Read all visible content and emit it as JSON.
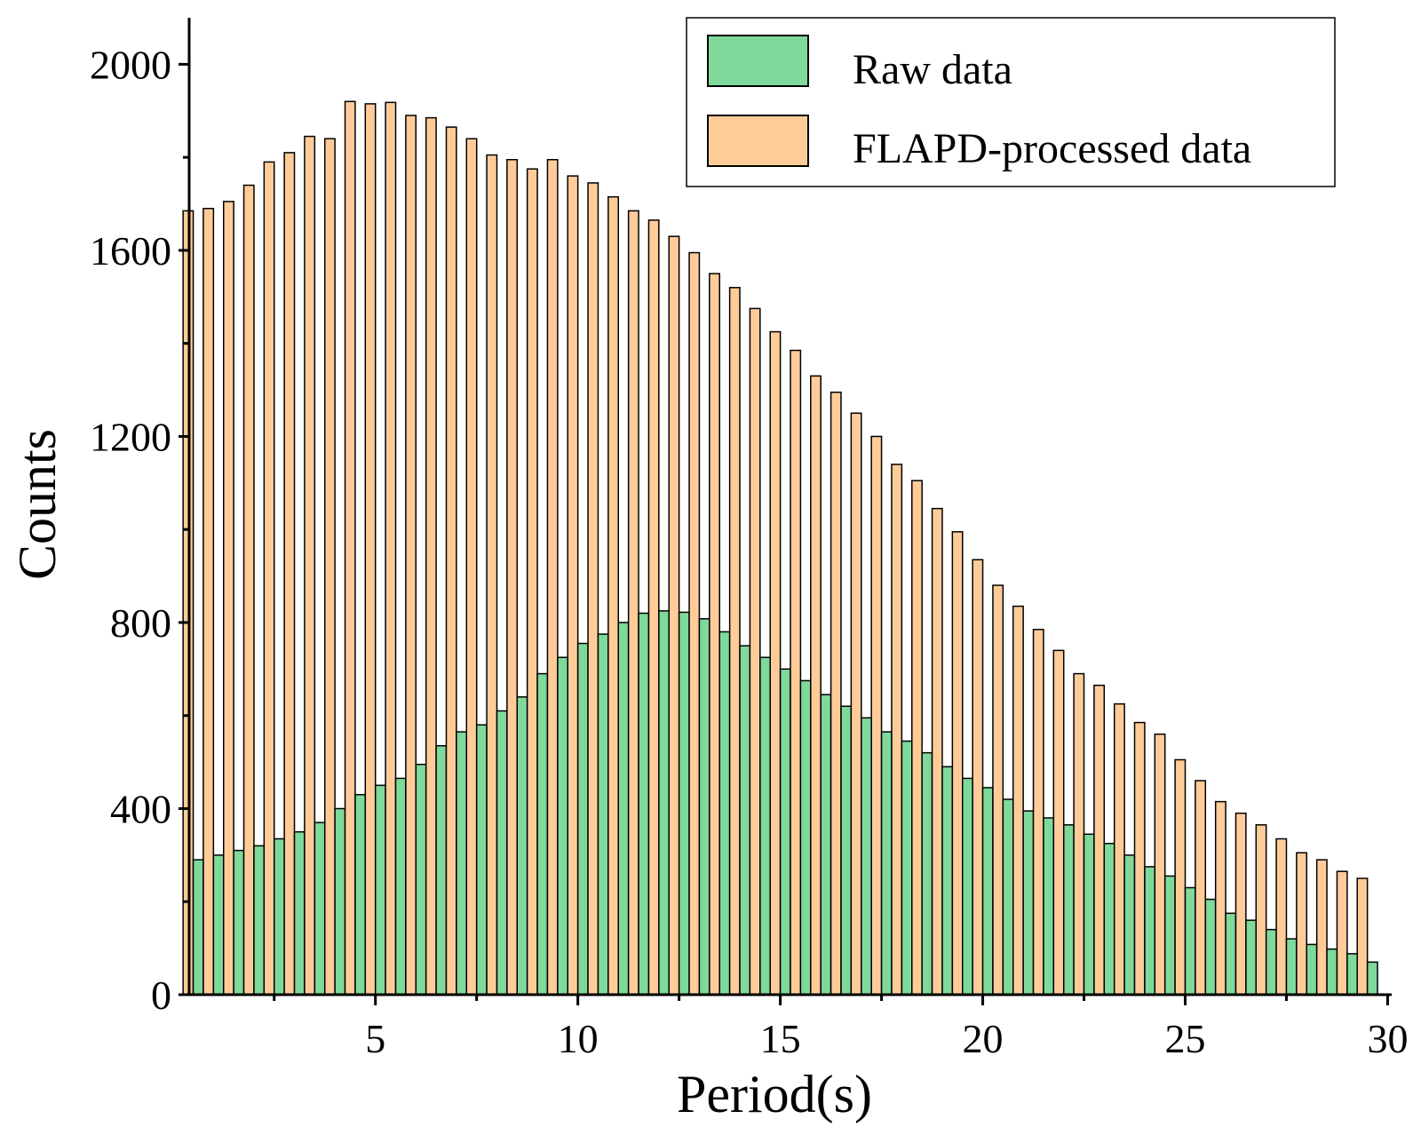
{
  "chart_data": {
    "type": "bar",
    "title": "",
    "xlabel": "Period(s)",
    "ylabel": "Counts",
    "xlim": [
      0.4,
      30.1
    ],
    "ylim": [
      0,
      2100
    ],
    "x_ticks": [
      5,
      10,
      15,
      20,
      25,
      30
    ],
    "y_ticks": [
      0,
      400,
      800,
      1200,
      1600,
      2000
    ],
    "grid": false,
    "legend_position": "top-right",
    "bin_start": 0.5,
    "bin_width": 0.5,
    "series": [
      {
        "name": "Raw data",
        "color": "#7fd99a",
        "values": [
          290,
          300,
          310,
          320,
          335,
          350,
          370,
          400,
          430,
          450,
          465,
          495,
          535,
          565,
          580,
          610,
          640,
          690,
          725,
          755,
          775,
          800,
          820,
          825,
          822,
          808,
          780,
          750,
          725,
          700,
          675,
          645,
          620,
          595,
          565,
          545,
          520,
          490,
          465,
          445,
          420,
          395,
          380,
          365,
          345,
          325,
          300,
          275,
          255,
          230,
          205,
          175,
          160,
          140,
          120,
          108,
          98,
          88,
          70
        ]
      },
      {
        "name": "FLAPD-processed data",
        "color": "#ffcc99",
        "values": [
          1685,
          1690,
          1705,
          1740,
          1790,
          1810,
          1845,
          1840,
          1920,
          1915,
          1918,
          1890,
          1885,
          1865,
          1840,
          1805,
          1795,
          1775,
          1795,
          1760,
          1745,
          1715,
          1685,
          1665,
          1630,
          1595,
          1550,
          1520,
          1475,
          1425,
          1385,
          1330,
          1295,
          1250,
          1200,
          1140,
          1105,
          1045,
          995,
          935,
          880,
          835,
          785,
          740,
          690,
          665,
          625,
          585,
          560,
          505,
          460,
          415,
          390,
          365,
          335,
          305,
          290,
          265,
          250
        ]
      }
    ]
  }
}
